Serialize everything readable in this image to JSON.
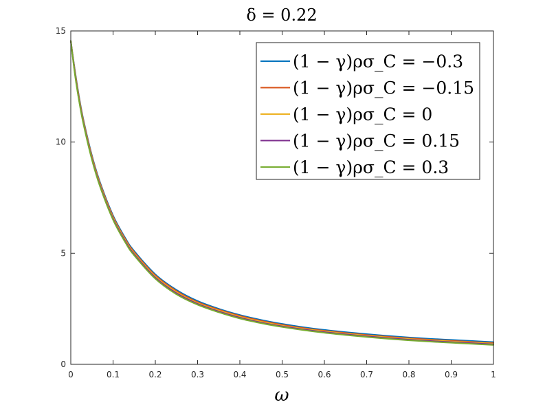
{
  "chart_data": {
    "type": "line",
    "title": "δ = 0.22",
    "xlabel": "ω",
    "ylabel": "",
    "xlim": [
      0,
      1
    ],
    "ylim": [
      0,
      15
    ],
    "xticks": [
      0,
      0.1,
      0.2,
      0.3,
      0.4,
      0.5,
      0.6,
      0.7,
      0.8,
      0.9,
      1
    ],
    "xtick_labels": [
      "0",
      "0.1",
      "0.2",
      "0.3",
      "0.4",
      "0.5",
      "0.6",
      "0.7",
      "0.8",
      "0.9",
      "1"
    ],
    "yticks": [
      0,
      5,
      10,
      15
    ],
    "ytick_labels": [
      "0",
      "5",
      "10",
      "15"
    ],
    "grid": false,
    "legend_position": "top-right",
    "x": [
      0,
      0.01,
      0.02,
      0.03,
      0.05,
      0.07,
      0.1,
      0.13,
      0.15,
      0.2,
      0.25,
      0.3,
      0.35,
      0.4,
      0.45,
      0.5,
      0.55,
      0.6,
      0.65,
      0.7,
      0.75,
      0.8,
      0.85,
      0.9,
      0.95,
      1.0
    ],
    "series": [
      {
        "name": "(1 − γ)ρσ_C = −0.3",
        "color": "#0072BD",
        "values": [
          14.55,
          13.2,
          12.0,
          11.0,
          9.4,
          8.15,
          6.7,
          5.65,
          5.1,
          4.05,
          3.35,
          2.85,
          2.5,
          2.22,
          2.0,
          1.82,
          1.67,
          1.55,
          1.45,
          1.36,
          1.28,
          1.21,
          1.15,
          1.1,
          1.05,
          1.0
        ]
      },
      {
        "name": "(1 − γ)ρσ_C = −0.15",
        "color": "#D95319",
        "values": [
          14.55,
          13.15,
          11.95,
          10.95,
          9.35,
          8.1,
          6.65,
          5.6,
          5.05,
          4.0,
          3.3,
          2.8,
          2.46,
          2.18,
          1.96,
          1.78,
          1.63,
          1.51,
          1.41,
          1.32,
          1.24,
          1.17,
          1.11,
          1.06,
          1.01,
          0.96
        ]
      },
      {
        "name": "(1 − γ)ρσ_C = 0",
        "color": "#EDB120",
        "values": [
          14.55,
          13.1,
          11.9,
          10.9,
          9.3,
          8.05,
          6.6,
          5.55,
          5.0,
          3.95,
          3.25,
          2.76,
          2.42,
          2.14,
          1.92,
          1.74,
          1.6,
          1.48,
          1.38,
          1.29,
          1.21,
          1.14,
          1.08,
          1.03,
          0.98,
          0.93
        ]
      },
      {
        "name": "(1 − γ)ρσ_C = 0.15",
        "color": "#7E2F8E",
        "values": [
          14.55,
          13.05,
          11.85,
          10.85,
          9.25,
          8.0,
          6.55,
          5.5,
          4.95,
          3.9,
          3.2,
          2.72,
          2.38,
          2.1,
          1.88,
          1.71,
          1.57,
          1.45,
          1.35,
          1.26,
          1.18,
          1.11,
          1.05,
          1.0,
          0.95,
          0.9
        ]
      },
      {
        "name": "(1 − γ)ρσ_C = 0.3",
        "color": "#77AC30",
        "values": [
          14.55,
          13.0,
          11.8,
          10.8,
          9.2,
          7.95,
          6.5,
          5.45,
          4.9,
          3.85,
          3.15,
          2.68,
          2.34,
          2.06,
          1.85,
          1.68,
          1.54,
          1.42,
          1.32,
          1.23,
          1.15,
          1.08,
          1.02,
          0.97,
          0.92,
          0.87
        ]
      }
    ]
  }
}
